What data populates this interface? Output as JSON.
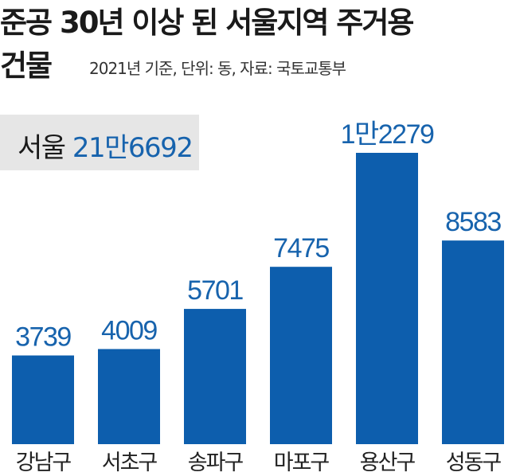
{
  "title_line1": "준공 30년 이상 된 서울지역 주거용",
  "title_line2": "건물",
  "subtitle": "2021년 기준, 단위: 동, 자료: 국토교통부",
  "total": {
    "label": "서울",
    "value": "21만6692"
  },
  "colors": {
    "bar": "#0d5ead",
    "value_text": "#1763ad",
    "box": "#e6e6e6"
  },
  "chart_data": {
    "type": "bar",
    "categories": [
      "강남구",
      "서초구",
      "송파구",
      "마포구",
      "용산구",
      "성동구"
    ],
    "values": [
      3739,
      4009,
      5701,
      7475,
      12279,
      8583
    ],
    "value_labels": [
      "3739",
      "4009",
      "5701",
      "7475",
      "1만2279",
      "8583"
    ],
    "title": "준공 30년 이상 된 서울지역 주거용 건물",
    "xlabel": "",
    "ylabel": "",
    "unit": "동",
    "grid": false,
    "legend": "none"
  }
}
